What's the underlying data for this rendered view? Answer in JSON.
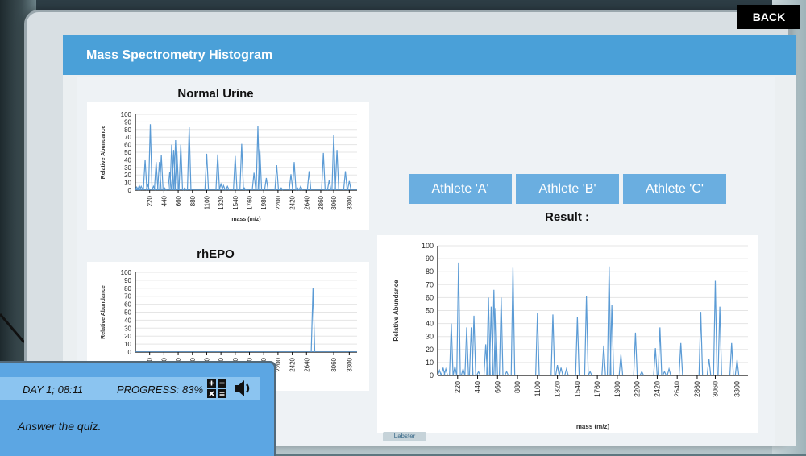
{
  "title": "Mass Spectrometry Histogram",
  "back_label": "BACK",
  "panels": {
    "normal_title": "Normal Urine",
    "rhepo_title": "rhEPO",
    "result_label": "Result :"
  },
  "athletes": [
    "Athlete 'A'",
    "Athlete 'B'",
    "Athlete 'C'"
  ],
  "footer_brand": "Labster",
  "hud": {
    "day": "DAY 1; 08:11",
    "progress_label": "PROGRESS:",
    "progress_value": "83%",
    "message": "Answer the quiz."
  },
  "colors": {
    "accent": "#4aa0d8",
    "button": "#6aaee0",
    "line": "#5b9bd5",
    "hud": "#5ca6e3"
  },
  "chart_data": [
    {
      "type": "line",
      "title": "Normal Urine",
      "xlabel": "mass (m/z)",
      "ylabel": "Relative Abundance",
      "ylim": [
        0,
        100
      ],
      "xticks": [
        220,
        440,
        660,
        880,
        1100,
        1320,
        1540,
        1760,
        1980,
        2200,
        2420,
        2640,
        2860,
        3060,
        3300
      ],
      "peaks": [
        [
          20,
          4
        ],
        [
          60,
          6
        ],
        [
          90,
          5
        ],
        [
          150,
          40
        ],
        [
          190,
          7
        ],
        [
          230,
          87
        ],
        [
          280,
          5
        ],
        [
          320,
          37
        ],
        [
          370,
          37
        ],
        [
          400,
          46
        ],
        [
          450,
          3
        ],
        [
          530,
          24
        ],
        [
          560,
          60
        ],
        [
          590,
          53
        ],
        [
          620,
          66
        ],
        [
          640,
          52
        ],
        [
          700,
          60
        ],
        [
          760,
          3
        ],
        [
          830,
          83
        ],
        [
          1100,
          48
        ],
        [
          1270,
          47
        ],
        [
          1320,
          8
        ],
        [
          1360,
          6
        ],
        [
          1420,
          5
        ],
        [
          1540,
          45
        ],
        [
          1640,
          61
        ],
        [
          1680,
          3
        ],
        [
          1830,
          23
        ],
        [
          1890,
          84
        ],
        [
          1920,
          54
        ],
        [
          2020,
          16
        ],
        [
          2180,
          33
        ],
        [
          2250,
          3
        ],
        [
          2400,
          21
        ],
        [
          2450,
          37
        ],
        [
          2500,
          3
        ],
        [
          2550,
          5
        ],
        [
          2680,
          25
        ],
        [
          2900,
          49
        ],
        [
          2990,
          13
        ],
        [
          3060,
          73
        ],
        [
          3110,
          53
        ],
        [
          3240,
          25
        ],
        [
          3300,
          12
        ]
      ]
    },
    {
      "type": "line",
      "title": "rhEPO",
      "xlabel": "",
      "ylabel": "Relative Abundance",
      "ylim": [
        0,
        100
      ],
      "xticks": [
        220,
        440,
        660,
        880,
        1100,
        1320,
        1540,
        1760,
        1980,
        2200,
        2420,
        2640,
        3060,
        3300
      ],
      "peaks": [
        [
          2740,
          80
        ]
      ]
    },
    {
      "type": "line",
      "title": "Result :",
      "xlabel": "mass (m/z)",
      "ylabel": "Relative Abundance",
      "ylim": [
        0,
        100
      ],
      "xticks": [
        220,
        440,
        660,
        880,
        1100,
        1320,
        1540,
        1760,
        1980,
        2200,
        2420,
        2640,
        2860,
        3060,
        3300
      ],
      "peaks": [
        [
          20,
          4
        ],
        [
          60,
          6
        ],
        [
          90,
          5
        ],
        [
          150,
          40
        ],
        [
          190,
          7
        ],
        [
          230,
          87
        ],
        [
          280,
          5
        ],
        [
          320,
          37
        ],
        [
          370,
          37
        ],
        [
          400,
          46
        ],
        [
          450,
          3
        ],
        [
          530,
          24
        ],
        [
          560,
          60
        ],
        [
          590,
          53
        ],
        [
          620,
          66
        ],
        [
          640,
          52
        ],
        [
          700,
          60
        ],
        [
          760,
          3
        ],
        [
          830,
          83
        ],
        [
          1100,
          48
        ],
        [
          1270,
          47
        ],
        [
          1320,
          8
        ],
        [
          1360,
          6
        ],
        [
          1420,
          5
        ],
        [
          1540,
          45
        ],
        [
          1640,
          61
        ],
        [
          1680,
          3
        ],
        [
          1830,
          23
        ],
        [
          1890,
          84
        ],
        [
          1920,
          54
        ],
        [
          2020,
          16
        ],
        [
          2180,
          33
        ],
        [
          2250,
          3
        ],
        [
          2400,
          21
        ],
        [
          2450,
          37
        ],
        [
          2500,
          3
        ],
        [
          2550,
          5
        ],
        [
          2680,
          25
        ],
        [
          2900,
          49
        ],
        [
          2990,
          13
        ],
        [
          3060,
          73
        ],
        [
          3110,
          53
        ],
        [
          3240,
          25
        ],
        [
          3300,
          12
        ]
      ]
    }
  ]
}
